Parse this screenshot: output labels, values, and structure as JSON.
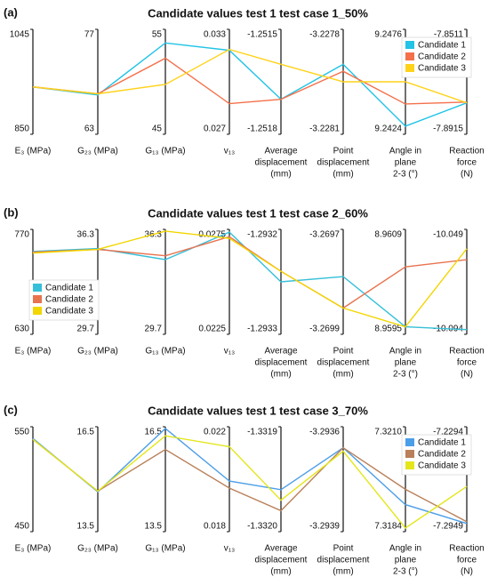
{
  "chart_data": [
    {
      "type": "parallel",
      "panel": "(a)",
      "title": "Candidate values test 1 test case 1_50%",
      "legend": "upper right",
      "axes": [
        {
          "label": [
            "E₃ (MPa)"
          ],
          "ylim": [
            850,
            1045
          ],
          "yticks": [
            850,
            1045
          ]
        },
        {
          "label": [
            "G₂₃ (MPa)"
          ],
          "ylim": [
            63,
            77
          ],
          "yticks": [
            63,
            77
          ]
        },
        {
          "label": [
            "G₁₃ (MPa)"
          ],
          "ylim": [
            45,
            55
          ],
          "yticks": [
            45,
            55
          ]
        },
        {
          "label": [
            "v₁₃"
          ],
          "ylim": [
            0.027,
            0.033
          ],
          "yticks": [
            0.027,
            0.033
          ]
        },
        {
          "label": [
            "Average",
            "displacement",
            "(mm)"
          ],
          "ylim": [
            -1.2518,
            -1.2515
          ],
          "yticks": [
            -1.2518,
            -1.2515
          ]
        },
        {
          "label": [
            "Point",
            "displacement",
            "(mm)"
          ],
          "ylim": [
            -3.2281,
            -3.2278
          ],
          "yticks": [
            -3.2281,
            -3.2278
          ]
        },
        {
          "label": [
            "Angle in",
            "plane",
            "2-3 (°)"
          ],
          "ylim": [
            9.2424,
            9.2476
          ],
          "yticks": [
            9.2424,
            9.2476
          ]
        },
        {
          "label": [
            "Reaction",
            "force",
            "(N)"
          ],
          "ylim": [
            -7.8915,
            -7.8511
          ],
          "yticks": [
            -7.8915,
            -7.8511
          ]
        }
      ],
      "series": [
        {
          "name": "Candidate 1",
          "color": "#22c3e6",
          "values": [
            938,
            68.25,
            53.7,
            0.0318,
            -1.2517,
            -3.2279,
            9.2428,
            -7.8794
          ]
        },
        {
          "name": "Candidate 2",
          "color": "#f4704a",
          "values": [
            938,
            68.4,
            52.25,
            0.02875,
            -1.2517,
            -3.22792,
            9.2439,
            -7.8791
          ]
        },
        {
          "name": "Candidate 3",
          "color": "#ffd21a",
          "values": [
            938,
            68.4,
            49.75,
            0.03185,
            -1.2516,
            -3.22795,
            9.245,
            -7.8794
          ]
        }
      ]
    },
    {
      "type": "parallel",
      "panel": "(b)",
      "title": "Candidate values test 1 test case 2_60%",
      "legend": "lower left",
      "axes": [
        {
          "label": [
            "E₃ (MPa)"
          ],
          "ylim": [
            630,
            770
          ],
          "yticks": [
            630,
            770
          ]
        },
        {
          "label": [
            "G₂₃ (MPa)"
          ],
          "ylim": [
            29.7,
            36.3
          ],
          "yticks": [
            29.7,
            36.3
          ]
        },
        {
          "label": [
            "G₁₃ (MPa)"
          ],
          "ylim": [
            29.7,
            36.3
          ],
          "yticks": [
            29.7,
            36.3
          ]
        },
        {
          "label": [
            "v₁₃"
          ],
          "ylim": [
            0.0225,
            0.0275
          ],
          "yticks": [
            0.0225,
            0.0275
          ]
        },
        {
          "label": [
            "Average",
            "displacement",
            "(mm)"
          ],
          "ylim": [
            -1.2933,
            -1.2932
          ],
          "yticks": [
            -1.2933,
            -1.2932
          ]
        },
        {
          "label": [
            "Point",
            "displacement",
            "(mm)"
          ],
          "ylim": [
            -3.2699,
            -3.2697
          ],
          "yticks": [
            -3.2699,
            -3.2697
          ]
        },
        {
          "label": [
            "Angle in",
            "plane",
            "2-3 (°)"
          ],
          "ylim": [
            8.9595,
            8.9609
          ],
          "yticks": [
            8.9595,
            8.9609
          ]
        },
        {
          "label": [
            "Reaction",
            "force",
            "(N)"
          ],
          "ylim": [
            -10.094,
            -10.049
          ],
          "yticks": [
            -10.094,
            -10.049
          ]
        }
      ],
      "series": [
        {
          "name": "Candidate 1",
          "color": "#36bfd8",
          "values": [
            740.6,
            35.09,
            34.4,
            0.02737,
            -1.29325,
            -3.26979,
            8.9596,
            -10.092
          ]
        },
        {
          "name": "Candidate 2",
          "color": "#e8734f",
          "values": [
            739.6,
            35.04,
            34.64,
            0.02715,
            -1.29324,
            -3.26985,
            8.9604,
            -10.062
          ]
        },
        {
          "name": "Candidate 3",
          "color": "#f2d600",
          "values": [
            738.4,
            35.04,
            36.19,
            0.02707,
            -1.29324,
            -3.26985,
            8.9596,
            -10.0573
          ]
        }
      ]
    },
    {
      "type": "parallel",
      "panel": "(c)",
      "title": "Candidate values test 1 test case 3_70%",
      "legend": "upper right",
      "axes": [
        {
          "label": [
            "E₃ (MPa)"
          ],
          "ylim": [
            450,
            550
          ],
          "yticks": [
            450,
            550
          ]
        },
        {
          "label": [
            "G₂₃ (MPa)"
          ],
          "ylim": [
            13.5,
            16.5
          ],
          "yticks": [
            13.5,
            16.5
          ]
        },
        {
          "label": [
            "G₁₃ (MPa)"
          ],
          "ylim": [
            13.5,
            16.5
          ],
          "yticks": [
            13.5,
            16.5
          ]
        },
        {
          "label": [
            "v₁₃"
          ],
          "ylim": [
            0.018,
            0.022
          ],
          "yticks": [
            0.018,
            0.022
          ]
        },
        {
          "label": [
            "Average",
            "displacement",
            "(mm)"
          ],
          "ylim": [
            -1.332,
            -1.3319
          ],
          "yticks": [
            {
              "value": -1.332,
              "label": "-1.3320"
            },
            -1.3319
          ]
        },
        {
          "label": [
            "Point",
            "displacement",
            "(mm)"
          ],
          "ylim": [
            -3.2939,
            -3.2936
          ],
          "yticks": [
            -3.2939,
            -3.2936
          ]
        },
        {
          "label": [
            "Angle in",
            "plane",
            "2-3 (°)"
          ],
          "ylim": [
            7.3184,
            7.321
          ],
          "yticks": [
            7.3184,
            {
              "value": 7.321,
              "label": "7.3210"
            }
          ]
        },
        {
          "label": [
            "Reaction",
            "force",
            "(N)"
          ],
          "ylim": [
            -7.2949,
            -7.2294
          ],
          "yticks": [
            -7.2949,
            -7.2294
          ]
        }
      ],
      "series": [
        {
          "name": "Candidate 1",
          "color": "#4b9ee8",
          "values": [
            538.8,
            14.64,
            16.45,
            0.01993,
            -1.33196,
            -3.29366,
            7.31907,
            -7.2898
          ]
        },
        {
          "name": "Candidate 2",
          "color": "#b9805a",
          "values": [
            537.9,
            14.66,
            15.85,
            0.01966,
            -1.33198,
            -3.29366,
            7.31945,
            -7.2887
          ]
        },
        {
          "name": "Candidate 3",
          "color": "#e4e61a",
          "values": [
            537.9,
            14.66,
            16.24,
            0.02124,
            -1.33197,
            -3.29367,
            7.31849,
            -7.2667
          ]
        }
      ]
    }
  ]
}
